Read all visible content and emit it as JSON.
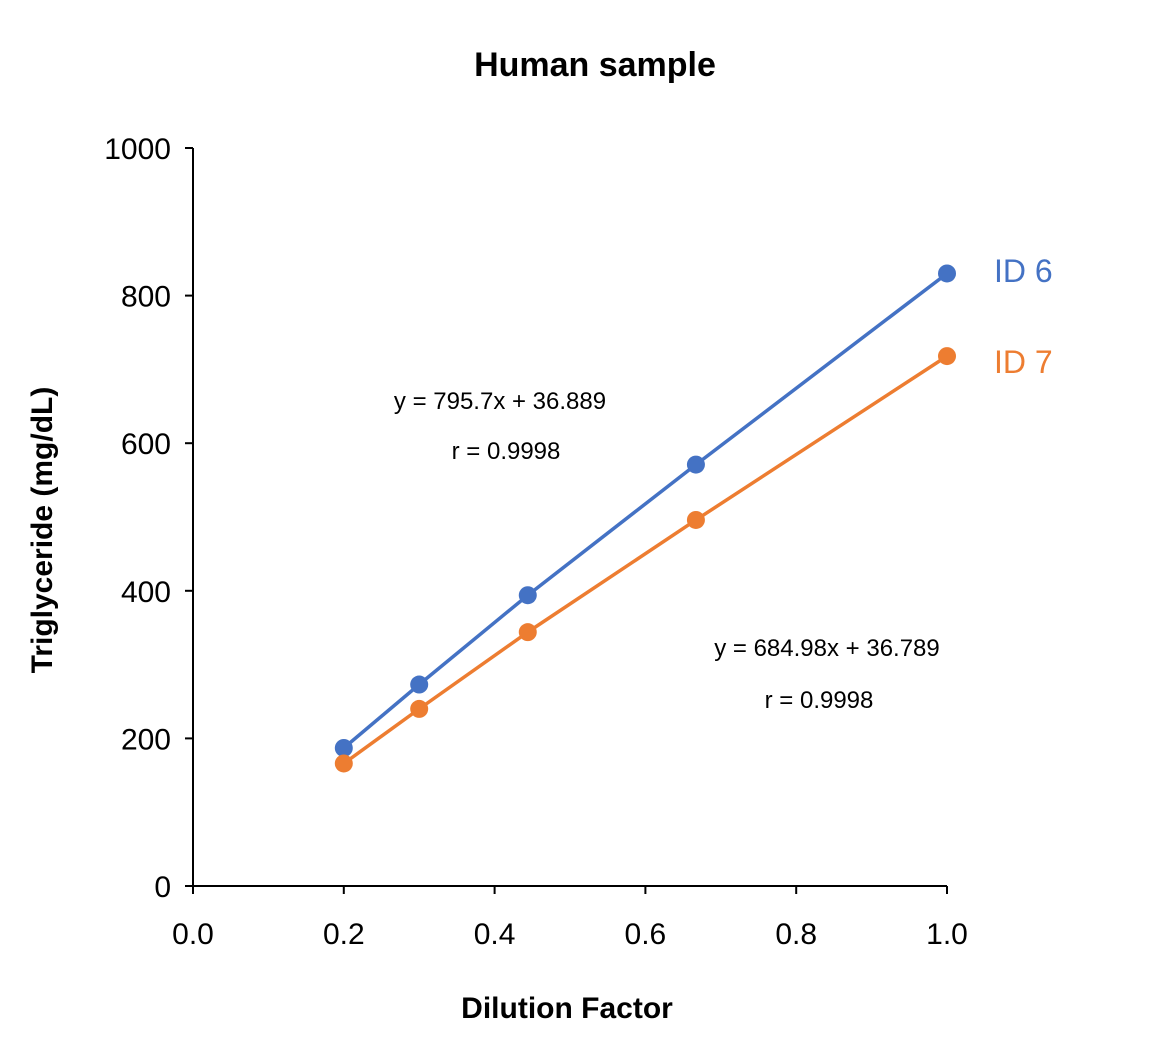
{
  "chart_data": {
    "type": "line",
    "title": "Human sample",
    "xlabel": "Dilution Factor",
    "ylabel": "Triglyceride (mg/dL)",
    "xlim": [
      0.0,
      1.0
    ],
    "ylim": [
      0,
      1000
    ],
    "xticks": [
      "0.0",
      "0.2",
      "0.4",
      "0.6",
      "0.8",
      "1.0"
    ],
    "yticks": [
      "0",
      "200",
      "400",
      "600",
      "800",
      "1000"
    ],
    "grid": false,
    "x": [
      0.2,
      0.3,
      0.444,
      0.667,
      1.0
    ],
    "series": [
      {
        "name": "ID 6",
        "color": "#4472C4",
        "values": [
          187,
          273,
          394,
          571,
          830
        ],
        "equation": "y = 795.7x + 36.889",
        "r": "r = 0.9998"
      },
      {
        "name": "ID 7",
        "color": "#ED7D31",
        "values": [
          166,
          240,
          344,
          496,
          718
        ],
        "equation": "y = 684.98x + 36.789",
        "r": "r = 0.9998"
      }
    ]
  }
}
